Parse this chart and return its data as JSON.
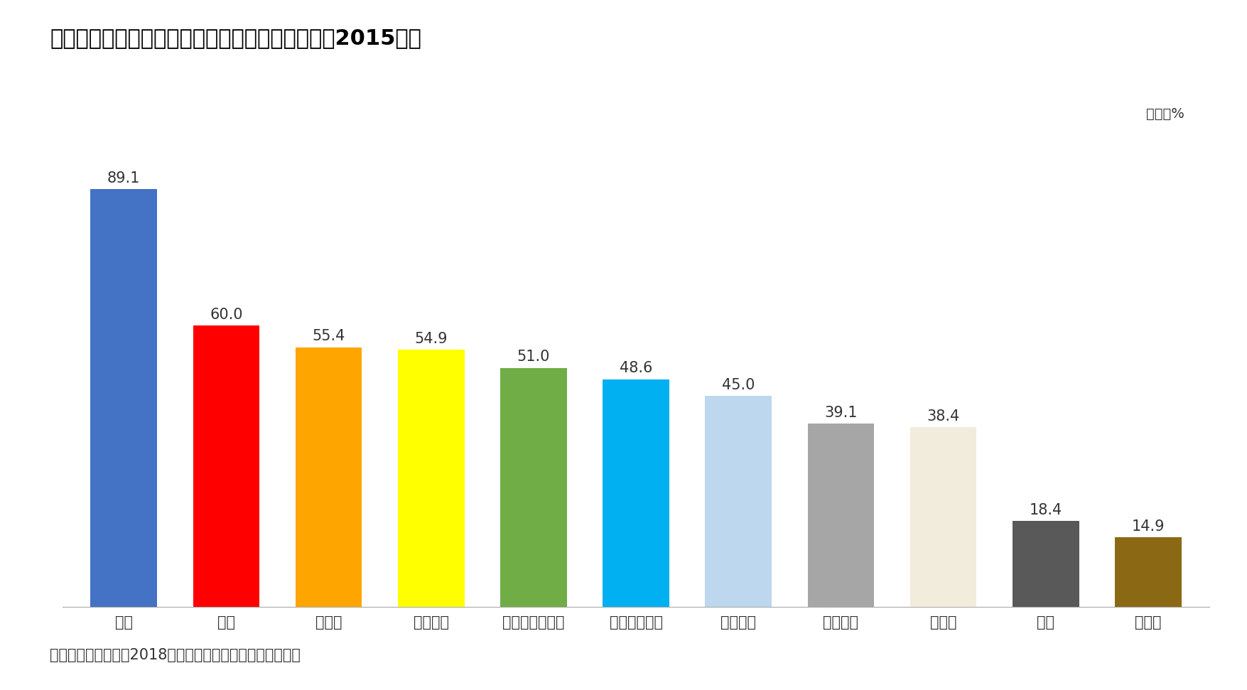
{
  "title": "図表２　各国のキャッシュレス決済比率の状況（2015年）",
  "unit_label": "単位：%",
  "source_label": "出所）経済産業省（2018）「キャッシュレス・ビジョン」",
  "categories": [
    "韓国",
    "中国",
    "カナダ",
    "イギリス",
    "オーストラリア",
    "スウェーデン",
    "アメリカ",
    "フランス",
    "インド",
    "日本",
    "ドイツ"
  ],
  "values": [
    89.1,
    60.0,
    55.4,
    54.9,
    51.0,
    48.6,
    45.0,
    39.1,
    38.4,
    18.4,
    14.9
  ],
  "colors": [
    "#4472C4",
    "#FF0000",
    "#FFA500",
    "#FFFF00",
    "#70AD47",
    "#00B0F0",
    "#BDD7EE",
    "#A6A6A6",
    "#F2ECDC",
    "#595959",
    "#8B6914"
  ],
  "ylim": [
    0,
    100
  ],
  "background_color": "#FFFFFF",
  "bar_edge_color": "none",
  "title_fontsize": 22,
  "label_fontsize": 16,
  "tick_fontsize": 15,
  "value_fontsize": 15,
  "unit_fontsize": 14,
  "source_fontsize": 15
}
